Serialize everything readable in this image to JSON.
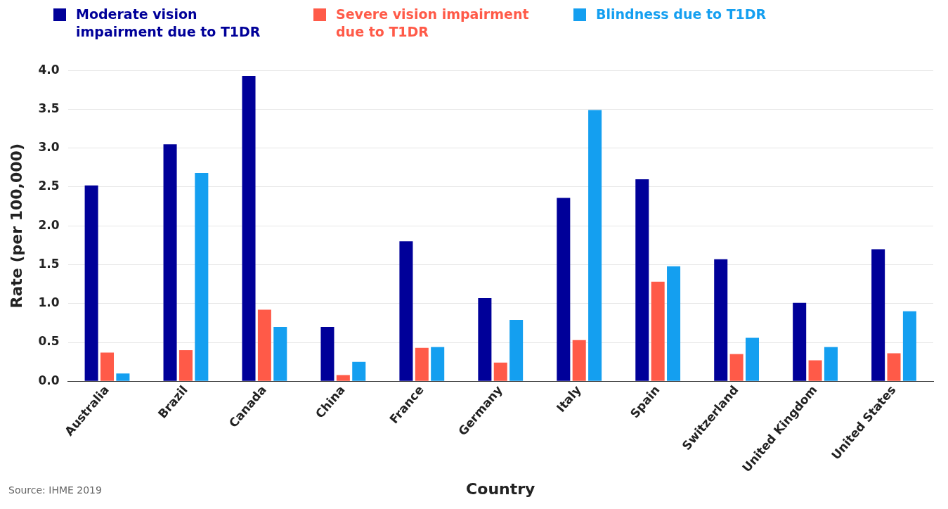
{
  "chart_data": {
    "type": "bar",
    "xlabel": "Country",
    "ylabel": "Rate (per 100,000)",
    "categories": [
      "Australia",
      "Brazil",
      "Canada",
      "China",
      "France",
      "Germany",
      "Italy",
      "Spain",
      "Switzerland",
      "United Kingdom",
      "United States"
    ],
    "series": [
      {
        "name": "Moderate vision impairment due to T1DR",
        "color": "#000099",
        "values": [
          2.52,
          3.05,
          3.93,
          0.7,
          1.8,
          1.07,
          2.36,
          2.6,
          1.57,
          1.01,
          1.7
        ]
      },
      {
        "name": "Severe vision impairment due to T1DR",
        "color": "#ff5a48",
        "values": [
          0.37,
          0.4,
          0.92,
          0.08,
          0.43,
          0.24,
          0.53,
          1.28,
          0.35,
          0.27,
          0.36
        ]
      },
      {
        "name": "Blindness due to T1DR",
        "color": "#149ff0",
        "values": [
          0.1,
          2.68,
          0.7,
          0.25,
          0.44,
          0.79,
          3.49,
          1.48,
          0.56,
          0.44,
          0.9
        ]
      }
    ],
    "ylim": [
      0,
      4
    ],
    "yticks": [
      {
        "value": 0,
        "label": "0.0"
      },
      {
        "value": 0.5,
        "label": "0.5"
      },
      {
        "value": 1,
        "label": "1.0"
      },
      {
        "value": 1.5,
        "label": "1.5"
      },
      {
        "value": 2,
        "label": "2.0"
      },
      {
        "value": 2.5,
        "label": "2.5"
      },
      {
        "value": 3,
        "label": "3.0"
      },
      {
        "value": 3.5,
        "label": "3.5"
      },
      {
        "value": 4,
        "label": "4.0"
      }
    ],
    "grid": "y",
    "legend": "top left",
    "annotations": [
      "Source: IHME 2019"
    ]
  }
}
